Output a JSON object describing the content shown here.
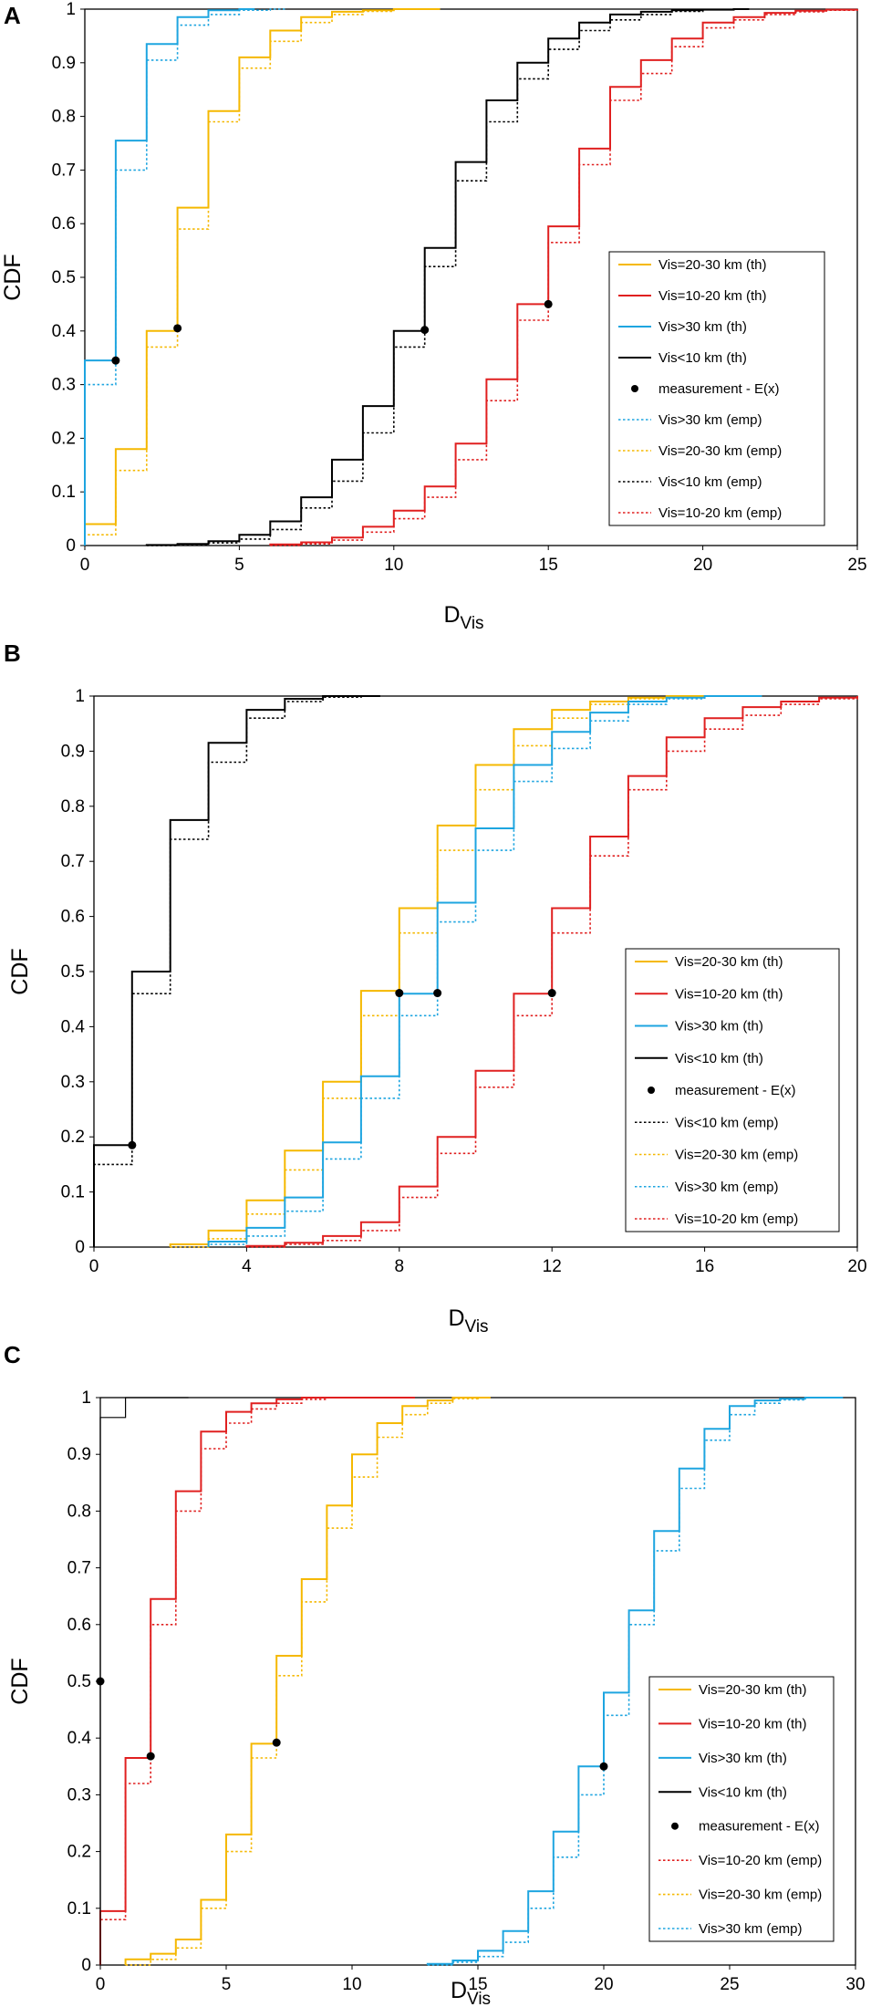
{
  "chart_data": [
    {
      "panel": "A",
      "type": "line",
      "xlabel": "D",
      "xlabel_sub": "Vis",
      "ylabel": "CDF",
      "xlim": [
        0,
        25
      ],
      "ylim": [
        0,
        1
      ],
      "xticks": [
        "0",
        "5",
        "10",
        "15",
        "20",
        "25"
      ],
      "yticks": [
        "0",
        "0.1",
        "0.2",
        "0.3",
        "0.4",
        "0.5",
        "0.6",
        "0.7",
        "0.8",
        "0.9",
        "1"
      ],
      "legend": [
        "Vis=20-30 km (th)",
        "Vis=10-20 km (th)",
        "Vis>30 km (th)",
        "Vis<10 km (th)",
        "measurement - E(x)",
        "Vis>30 km (emp)",
        "Vis=20-30 km (emp)",
        "Vis<10 km (emp)",
        "Vis=10-20 km (emp)"
      ],
      "series": [
        {
          "name": "Vis=20-30 km (th)",
          "style": "th",
          "color": "#f5b800",
          "x": [
            0,
            1,
            2,
            3,
            4,
            5,
            6,
            7,
            8,
            9,
            10,
            11
          ],
          "values": [
            0.04,
            0.18,
            0.4,
            0.63,
            0.81,
            0.91,
            0.96,
            0.985,
            0.995,
            0.998,
            1.0,
            1.0
          ]
        },
        {
          "name": "Vis=10-20 km (th)",
          "style": "th",
          "color": "#e02020",
          "x": [
            6,
            7,
            8,
            9,
            10,
            11,
            12,
            13,
            14,
            15,
            16,
            17,
            18,
            19,
            20,
            21,
            22,
            23,
            24,
            25
          ],
          "values": [
            0.002,
            0.006,
            0.015,
            0.035,
            0.065,
            0.11,
            0.19,
            0.31,
            0.45,
            0.595,
            0.74,
            0.855,
            0.905,
            0.945,
            0.975,
            0.985,
            0.993,
            0.997,
            0.999,
            1.0
          ]
        },
        {
          "name": "Vis>30 km (th)",
          "style": "th",
          "color": "#1ea5e0",
          "x": [
            0,
            1,
            2,
            3,
            4,
            5
          ],
          "values": [
            0.345,
            0.755,
            0.935,
            0.985,
            0.998,
            1.0
          ]
        },
        {
          "name": "Vis<10 km (th)",
          "style": "th",
          "color": "#000000",
          "x": [
            2,
            3,
            4,
            5,
            6,
            7,
            8,
            9,
            10,
            11,
            12,
            13,
            14,
            15,
            16,
            17,
            18,
            19,
            20,
            21
          ],
          "values": [
            0.001,
            0.003,
            0.008,
            0.02,
            0.045,
            0.09,
            0.16,
            0.26,
            0.4,
            0.555,
            0.715,
            0.83,
            0.9,
            0.945,
            0.975,
            0.99,
            0.995,
            0.998,
            0.999,
            1.0
          ]
        },
        {
          "name": "Vis>30 km (emp)",
          "style": "emp",
          "color": "#1ea5e0",
          "x": [
            0,
            1,
            2,
            3,
            4,
            5,
            6
          ],
          "values": [
            0.3,
            0.7,
            0.905,
            0.97,
            0.99,
            0.998,
            1.0
          ]
        },
        {
          "name": "Vis=20-30 km (emp)",
          "style": "emp",
          "color": "#f5b800",
          "x": [
            0,
            1,
            2,
            3,
            4,
            5,
            6,
            7,
            8,
            9,
            10,
            11
          ],
          "values": [
            0.02,
            0.14,
            0.37,
            0.59,
            0.79,
            0.89,
            0.94,
            0.975,
            0.99,
            0.996,
            1.0,
            1.0
          ]
        },
        {
          "name": "Vis<10 km (emp)",
          "style": "emp",
          "color": "#000000",
          "x": [
            2,
            3,
            4,
            5,
            6,
            7,
            8,
            9,
            10,
            11,
            12,
            13,
            14,
            15,
            16,
            17,
            18,
            19,
            20,
            21
          ],
          "values": [
            0.0,
            0.002,
            0.005,
            0.012,
            0.03,
            0.07,
            0.12,
            0.21,
            0.37,
            0.52,
            0.68,
            0.79,
            0.87,
            0.925,
            0.96,
            0.98,
            0.99,
            0.996,
            0.999,
            1.0
          ]
        },
        {
          "name": "Vis=10-20 km (emp)",
          "style": "emp",
          "color": "#e02020",
          "x": [
            6,
            7,
            8,
            9,
            10,
            11,
            12,
            13,
            14,
            15,
            16,
            17,
            18,
            19,
            20,
            21,
            22,
            23,
            24,
            25
          ],
          "values": [
            0.0,
            0.003,
            0.01,
            0.025,
            0.05,
            0.09,
            0.16,
            0.27,
            0.42,
            0.565,
            0.71,
            0.83,
            0.88,
            0.93,
            0.965,
            0.98,
            0.99,
            0.995,
            0.998,
            1.0
          ]
        }
      ],
      "measurements": [
        {
          "x": 1,
          "y": 0.345
        },
        {
          "x": 3,
          "y": 0.405
        },
        {
          "x": 11,
          "y": 0.402
        },
        {
          "x": 15,
          "y": 0.45
        }
      ]
    },
    {
      "panel": "B",
      "type": "line",
      "xlabel": "D",
      "xlabel_sub": "Vis",
      "ylabel": "CDF",
      "xlim": [
        0,
        20
      ],
      "ylim": [
        0,
        1
      ],
      "xticks": [
        "0",
        "4",
        "8",
        "12",
        "16",
        "20"
      ],
      "xtick_values": [
        0,
        4,
        8,
        12,
        16,
        20
      ],
      "yticks": [
        "0",
        "0.1",
        "0.2",
        "0.3",
        "0.4",
        "0.5",
        "0.6",
        "0.7",
        "0.8",
        "0.9",
        "1"
      ],
      "legend": [
        "Vis=20-30 km (th)",
        "Vis=10-20 km (th)",
        "Vis>30 km (th)",
        "Vis<10 km (th)",
        "measurement - E(x)",
        "Vis<10 km (emp)",
        "Vis=20-30 km (emp)",
        "Vis>30 km (emp)",
        "Vis=10-20 km (emp)"
      ],
      "series": [
        {
          "name": "Vis=20-30 km (th)",
          "style": "th",
          "color": "#f5b800",
          "x": [
            2,
            3,
            4,
            5,
            6,
            7,
            8,
            9,
            10,
            11,
            12,
            13,
            14,
            15,
            16,
            17
          ],
          "values": [
            0.005,
            0.03,
            0.085,
            0.175,
            0.3,
            0.465,
            0.615,
            0.765,
            0.875,
            0.94,
            0.975,
            0.99,
            0.997,
            1.0,
            1.0,
            1.0
          ]
        },
        {
          "name": "Vis=10-20 km (th)",
          "style": "th",
          "color": "#e02020",
          "x": [
            4,
            5,
            6,
            7,
            8,
            9,
            10,
            11,
            12,
            13,
            14,
            15,
            16,
            17,
            18,
            19,
            20
          ],
          "values": [
            0.002,
            0.008,
            0.02,
            0.045,
            0.11,
            0.2,
            0.32,
            0.46,
            0.615,
            0.745,
            0.855,
            0.925,
            0.96,
            0.98,
            0.99,
            0.997,
            1.0
          ]
        },
        {
          "name": "Vis>30 km (th)",
          "style": "th",
          "color": "#1ea5e0",
          "x": [
            3,
            4,
            5,
            6,
            7,
            8,
            9,
            10,
            11,
            12,
            13,
            14,
            15,
            16,
            17
          ],
          "values": [
            0.01,
            0.035,
            0.09,
            0.19,
            0.31,
            0.46,
            0.625,
            0.76,
            0.875,
            0.935,
            0.97,
            0.99,
            0.997,
            1.0,
            1.0
          ]
        },
        {
          "name": "Vis<10 km (th)",
          "style": "th",
          "color": "#000000",
          "x": [
            0,
            1,
            2,
            3,
            4,
            5,
            6,
            7
          ],
          "values": [
            0.185,
            0.5,
            0.775,
            0.915,
            0.975,
            0.995,
            1.0,
            1.0
          ]
        },
        {
          "name": "Vis<10 km (emp)",
          "style": "emp",
          "color": "#000000",
          "x": [
            0,
            1,
            2,
            3,
            4,
            5,
            6,
            7
          ],
          "values": [
            0.15,
            0.46,
            0.74,
            0.88,
            0.96,
            0.99,
            0.998,
            1.0
          ]
        },
        {
          "name": "Vis=20-30 km (emp)",
          "style": "emp",
          "color": "#f5b800",
          "x": [
            2,
            3,
            4,
            5,
            6,
            7,
            8,
            9,
            10,
            11,
            12,
            13,
            14,
            15,
            16,
            17
          ],
          "values": [
            0.0,
            0.015,
            0.06,
            0.14,
            0.27,
            0.42,
            0.57,
            0.72,
            0.83,
            0.91,
            0.96,
            0.985,
            0.995,
            1.0,
            1.0,
            1.0
          ]
        },
        {
          "name": "Vis>30 km (emp)",
          "style": "emp",
          "color": "#1ea5e0",
          "x": [
            3,
            4,
            5,
            6,
            7,
            8,
            9,
            10,
            11,
            12,
            13,
            14,
            15,
            16,
            17
          ],
          "values": [
            0.005,
            0.02,
            0.065,
            0.16,
            0.27,
            0.42,
            0.59,
            0.72,
            0.845,
            0.905,
            0.955,
            0.985,
            0.995,
            1.0,
            1.0
          ]
        },
        {
          "name": "Vis=10-20 km (emp)",
          "style": "emp",
          "color": "#e02020",
          "x": [
            4,
            5,
            6,
            7,
            8,
            9,
            10,
            11,
            12,
            13,
            14,
            15,
            16,
            17,
            18,
            19,
            20
          ],
          "values": [
            0.0,
            0.005,
            0.012,
            0.03,
            0.09,
            0.17,
            0.29,
            0.42,
            0.57,
            0.71,
            0.83,
            0.9,
            0.94,
            0.965,
            0.985,
            0.995,
            1.0
          ]
        }
      ],
      "measurements": [
        {
          "x": 1,
          "y": 0.185
        },
        {
          "x": 8,
          "y": 0.461
        },
        {
          "x": 9,
          "y": 0.461
        },
        {
          "x": 12,
          "y": 0.461
        }
      ]
    },
    {
      "panel": "C",
      "type": "line",
      "xlabel": "D",
      "xlabel_sub": "Vis",
      "ylabel": "CDF",
      "xlim": [
        0,
        30
      ],
      "ylim": [
        0,
        1
      ],
      "xticks": [
        "0",
        "5",
        "10",
        "15",
        "20",
        "25",
        "30"
      ],
      "yticks": [
        "0",
        "0.1",
        "0.2",
        "0.3",
        "0.4",
        "0.5",
        "0.6",
        "0.7",
        "0.8",
        "0.9",
        "1"
      ],
      "legend": [
        "Vis=20-30 km (th)",
        "Vis=10-20 km (th)",
        "Vis>30 km (th)",
        "Vis<10 km (th)",
        "measurement - E(x)",
        "Vis=10-20 km (emp)",
        "Vis=20-30 km (emp)",
        "Vis>30 km (emp)"
      ],
      "series": [
        {
          "name": "Vis=20-30 km (th)",
          "style": "th",
          "color": "#f5b800",
          "x": [
            1,
            2,
            3,
            4,
            5,
            6,
            7,
            8,
            9,
            10,
            11,
            12,
            13,
            14,
            15
          ],
          "values": [
            0.01,
            0.02,
            0.045,
            0.115,
            0.23,
            0.39,
            0.545,
            0.68,
            0.81,
            0.9,
            0.955,
            0.985,
            0.995,
            1.0,
            1.0
          ]
        },
        {
          "name": "Vis=10-20 km (th)",
          "style": "th",
          "color": "#e02020",
          "x": [
            0,
            1,
            2,
            3,
            4,
            5,
            6,
            7,
            8,
            9,
            10,
            11,
            12
          ],
          "values": [
            0.095,
            0.365,
            0.645,
            0.835,
            0.94,
            0.975,
            0.99,
            0.997,
            1.0,
            1.0,
            1.0,
            1.0,
            1.0
          ]
        },
        {
          "name": "Vis>30 km (th)",
          "style": "th",
          "color": "#1ea5e0",
          "x": [
            13,
            14,
            15,
            16,
            17,
            18,
            19,
            20,
            21,
            22,
            23,
            24,
            25,
            26,
            27,
            28,
            29
          ],
          "values": [
            0.002,
            0.008,
            0.025,
            0.06,
            0.13,
            0.235,
            0.35,
            0.48,
            0.625,
            0.765,
            0.875,
            0.945,
            0.985,
            0.995,
            0.998,
            1.0,
            1.0
          ]
        },
        {
          "name": "Vis<10 km (th)",
          "style": "th",
          "color": "#000000",
          "x": [
            0,
            1,
            2,
            3
          ],
          "values": [
            0.965,
            1.0,
            1.0,
            1.0
          ]
        },
        {
          "name": "Vis=10-20 km (emp)",
          "style": "emp",
          "color": "#e02020",
          "x": [
            0,
            1,
            2,
            3,
            4,
            5,
            6,
            7,
            8,
            9,
            10,
            11,
            12
          ],
          "values": [
            0.08,
            0.32,
            0.6,
            0.8,
            0.91,
            0.955,
            0.98,
            0.99,
            0.997,
            1.0,
            1.0,
            1.0,
            1.0
          ]
        },
        {
          "name": "Vis=20-30 km (emp)",
          "style": "emp",
          "color": "#f5b800",
          "x": [
            1,
            2,
            3,
            4,
            5,
            6,
            7,
            8,
            9,
            10,
            11,
            12,
            13,
            14,
            15
          ],
          "values": [
            0.0,
            0.01,
            0.03,
            0.1,
            0.2,
            0.365,
            0.51,
            0.64,
            0.77,
            0.86,
            0.93,
            0.97,
            0.99,
            0.998,
            1.0
          ]
        },
        {
          "name": "Vis>30 km (emp)",
          "style": "emp",
          "color": "#1ea5e0",
          "x": [
            13,
            14,
            15,
            16,
            17,
            18,
            19,
            20,
            21,
            22,
            23,
            24,
            25,
            26,
            27,
            28,
            29
          ],
          "values": [
            0.0,
            0.005,
            0.015,
            0.04,
            0.1,
            0.19,
            0.3,
            0.44,
            0.6,
            0.73,
            0.84,
            0.925,
            0.97,
            0.99,
            0.996,
            1.0,
            1.0
          ]
        }
      ],
      "measurements": [
        {
          "x": 0,
          "y": 0.5
        },
        {
          "x": 2,
          "y": 0.368
        },
        {
          "x": 7,
          "y": 0.392
        },
        {
          "x": 20,
          "y": 0.35
        }
      ]
    }
  ]
}
